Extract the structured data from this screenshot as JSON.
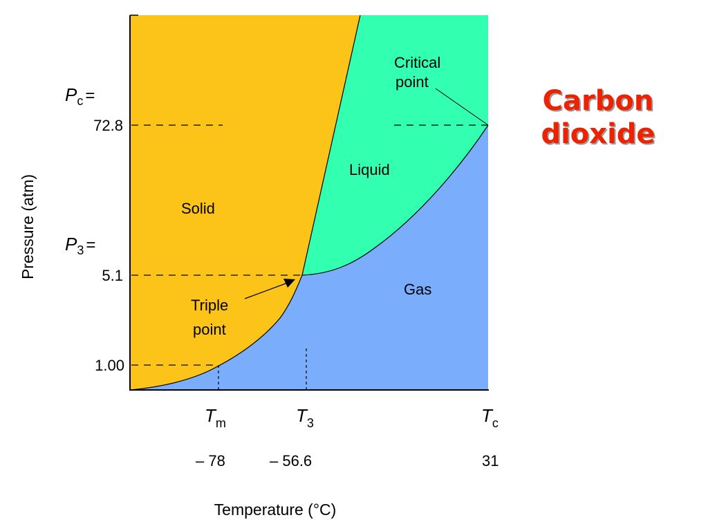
{
  "title": {
    "line1": "Carbon",
    "line2": "dioxide"
  },
  "axes": {
    "x_title": "Temperature (°C)",
    "y_title": "Pressure (atm)"
  },
  "regions": {
    "solid": "Solid",
    "liquid": "Liquid",
    "gas": "Gas"
  },
  "annotations": {
    "critical_point_line1": "Critical",
    "critical_point_line2": "point",
    "triple_point_line1": "Triple",
    "triple_point_line2": "point"
  },
  "pressure_levels": {
    "pc_symbol": "P",
    "pc_sub": "c",
    "pc_eq": "=",
    "pc_value": "72.8",
    "p3_symbol": "P",
    "p3_sub": "3",
    "p3_eq": "=",
    "p3_value": "5.1",
    "p1_value": "1.00"
  },
  "temperature_levels": {
    "tm_symbol": "T",
    "tm_sub": "m",
    "tm_value": "– 78",
    "t3_symbol": "T",
    "t3_sub": "3",
    "t3_value": "– 56.6",
    "tc_symbol": "T",
    "tc_sub": "c",
    "tc_value": "31"
  },
  "colors": {
    "solid": "#fcc419",
    "liquid": "#33ffb0",
    "gas": "#7aaefc",
    "title": "#ee2200"
  }
}
